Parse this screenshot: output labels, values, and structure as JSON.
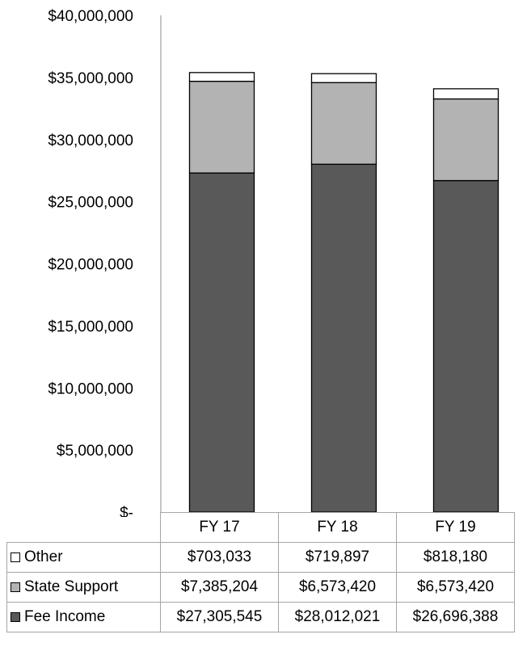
{
  "chart_data": {
    "type": "bar",
    "stacked": true,
    "categories": [
      "FY 17",
      "FY 18",
      "FY 19"
    ],
    "series": [
      {
        "name": "Fee Income",
        "values": [
          27305545,
          28012021,
          26696388
        ],
        "color": "#595959",
        "labels": [
          "$27,305,545",
          "$28,012,021",
          "$26,696,388"
        ]
      },
      {
        "name": "State Support",
        "values": [
          7385204,
          6573420,
          6573420
        ],
        "color": "#b3b3b3",
        "labels": [
          "$7,385,204",
          "$6,573,420",
          "$6,573,420"
        ]
      },
      {
        "name": "Other",
        "values": [
          703033,
          719897,
          818180
        ],
        "color": "#ffffff",
        "labels": [
          "$703,033",
          "$719,897",
          "$818,180"
        ]
      }
    ],
    "ylim": [
      0,
      40000000
    ],
    "yticks": [
      0,
      5000000,
      10000000,
      15000000,
      20000000,
      25000000,
      30000000,
      35000000,
      40000000
    ],
    "ytick_labels": [
      "$-",
      "$5,000,000",
      "$10,000,000",
      "$15,000,000",
      "$20,000,000",
      "$25,000,000",
      "$30,000,000",
      "$35,000,000",
      "$40,000,000"
    ],
    "grid": false,
    "legend": "data table below chart"
  }
}
